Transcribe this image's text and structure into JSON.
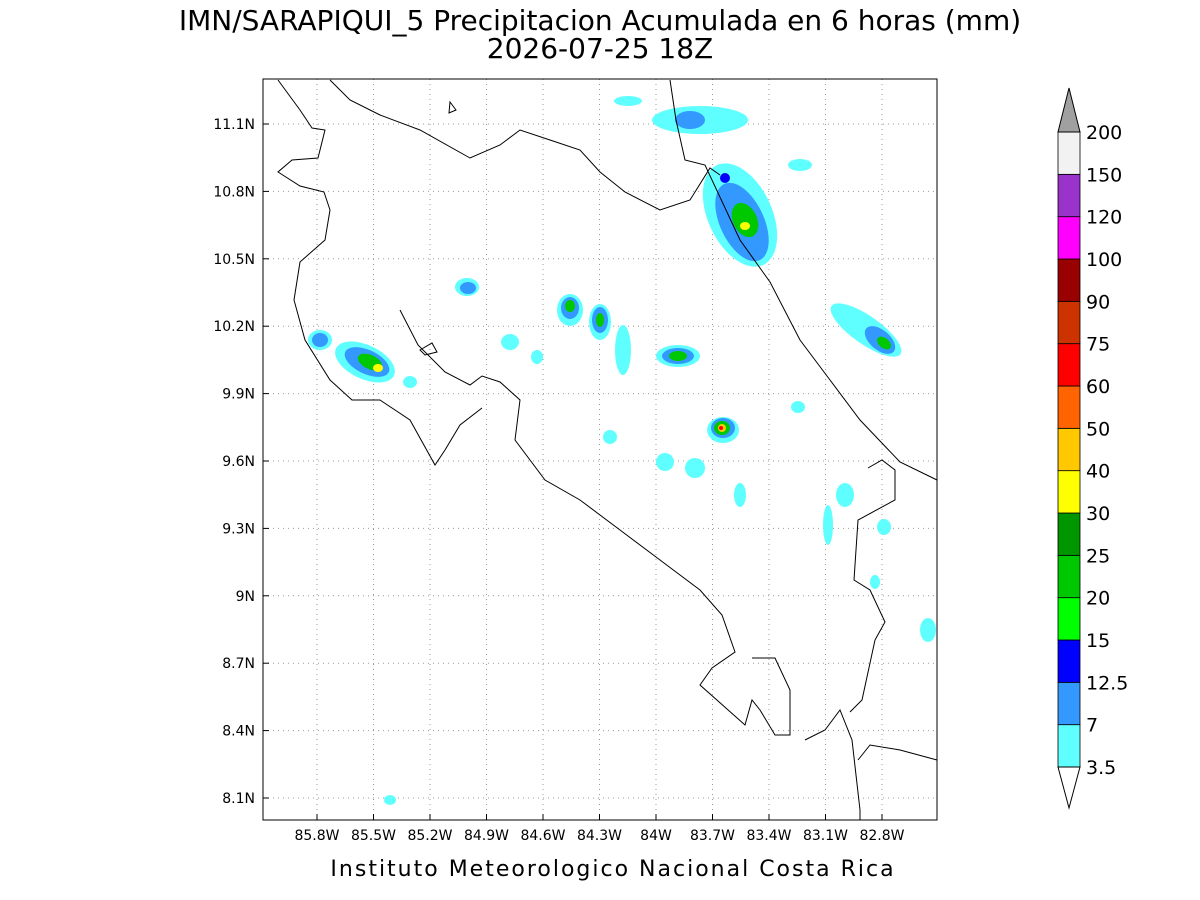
{
  "title": [
    "IMN/SARAPIQUI_5 Precipitacion Acumulada en 6 horas (mm)",
    "2026-07-25 18Z"
  ],
  "x_axis_labels": [
    "85.8W",
    "85.5W",
    "85.2W",
    "84.9W",
    "84.6W",
    "84.3W",
    "84W",
    "83.7W",
    "83.4W",
    "83.1W",
    "82.8W"
  ],
  "y_axis_labels": [
    "11.1N",
    "10.8N",
    "10.5N",
    "10.2N",
    "9.9N",
    "9.6N",
    "9.3N",
    "9N",
    "8.7N",
    "8.4N",
    "8.1N"
  ],
  "colorbar": {
    "labels": [
      "3.5",
      "7",
      "12.5",
      "15",
      "20",
      "25",
      "30",
      "40",
      "50",
      "60",
      "75",
      "90",
      "100",
      "120",
      "150",
      "200"
    ],
    "colors": [
      "#60ffff",
      "#3399ff",
      "#0000ff",
      "#00ff00",
      "#00c800",
      "#009600",
      "#ffff00",
      "#ffc800",
      "#ff6400",
      "#ff0000",
      "#cc3300",
      "#990000",
      "#ff00ff",
      "#9933cc",
      "#f2f2f2"
    ],
    "over_color": "#a0a0a0",
    "under_color": "#ffffff"
  },
  "footer": "Instituto Meteorologico Nacional Costa Rica"
}
